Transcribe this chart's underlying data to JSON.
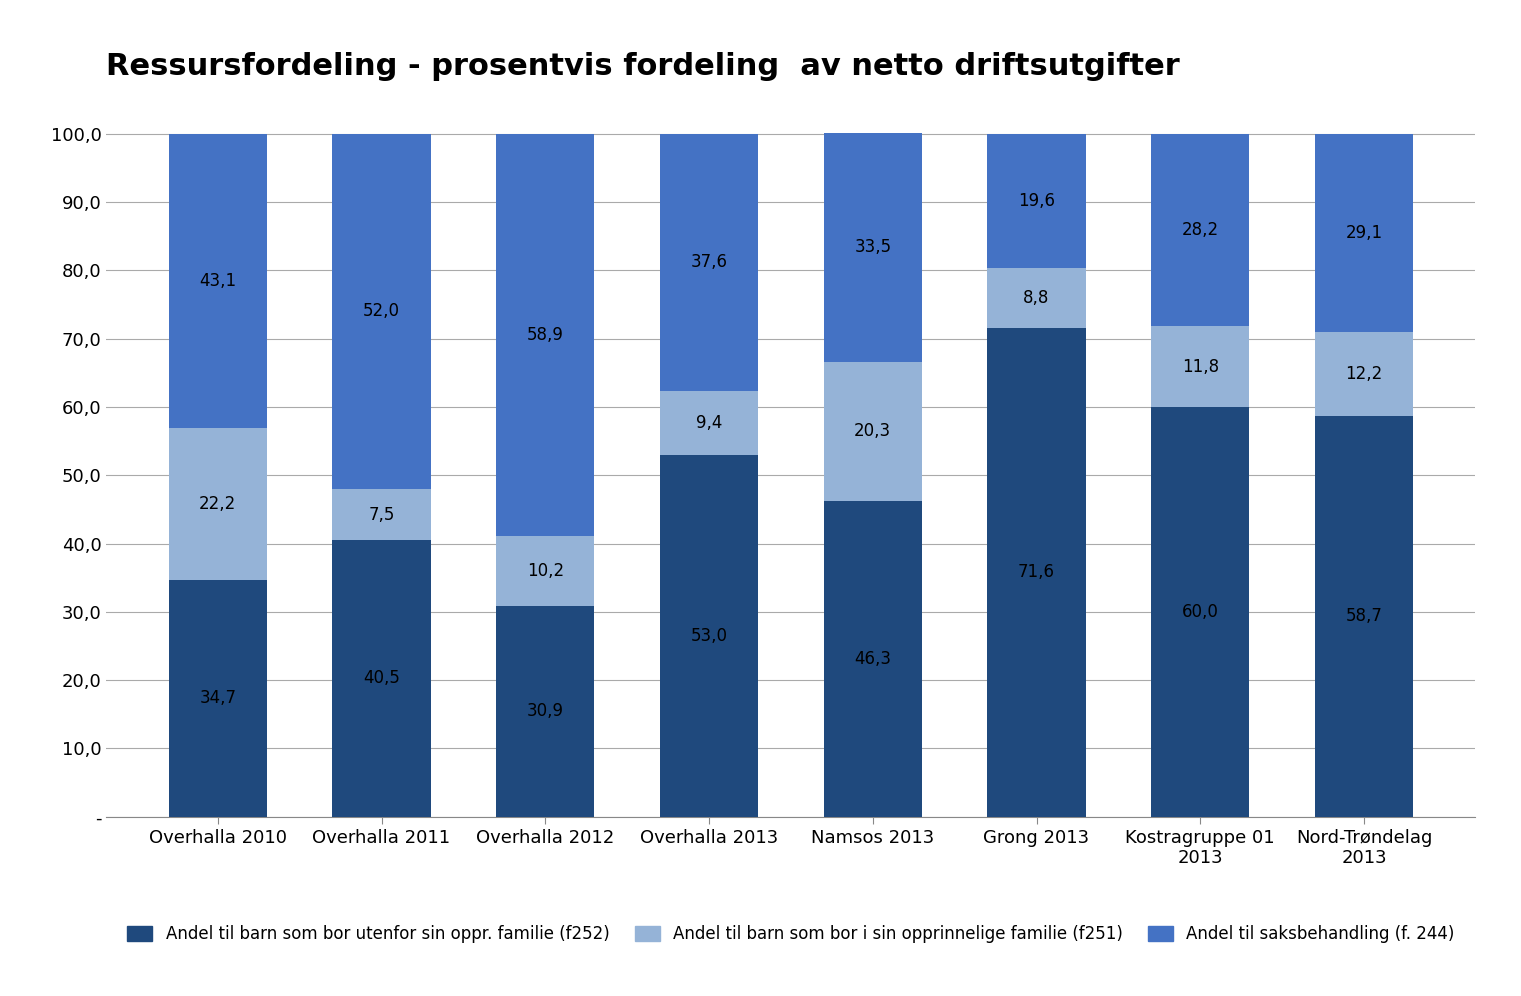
{
  "title": "Ressursfordeling - prosentvis fordeling  av netto driftsutgifter",
  "categories": [
    "Overhalla 2010",
    "Overhalla 2011",
    "Overhalla 2012",
    "Overhalla 2013",
    "Namsos 2013",
    "Grong 2013",
    "Kostragruppe 01\n2013",
    "Nord-Trøndelag\n2013"
  ],
  "series": [
    {
      "name": "Andel til barn som bor utenfor sin oppr. familie (f252)",
      "color": "#1F497D",
      "values": [
        34.7,
        40.5,
        30.9,
        53.0,
        46.3,
        71.6,
        60.0,
        58.7
      ]
    },
    {
      "name": "Andel til barn som bor i sin opprinnelige familie (f251)",
      "color": "#95B3D7",
      "values": [
        22.2,
        7.5,
        10.2,
        9.4,
        20.3,
        8.8,
        11.8,
        12.2
      ]
    },
    {
      "name": "Andel til saksbehandling (f. 244)",
      "color": "#4472C4",
      "values": [
        43.1,
        52.0,
        58.9,
        37.6,
        33.5,
        19.6,
        28.2,
        29.1
      ]
    }
  ],
  "ylim": [
    0,
    105
  ],
  "yticks": [
    0,
    10.0,
    20.0,
    30.0,
    40.0,
    50.0,
    60.0,
    70.0,
    80.0,
    90.0,
    100.0
  ],
  "ylabel": "",
  "xlabel": "",
  "background_color": "#FFFFFF",
  "grid_color": "#AAAAAA",
  "bar_width": 0.6,
  "title_fontsize": 22,
  "tick_fontsize": 13,
  "label_fontsize": 12,
  "legend_fontsize": 12
}
